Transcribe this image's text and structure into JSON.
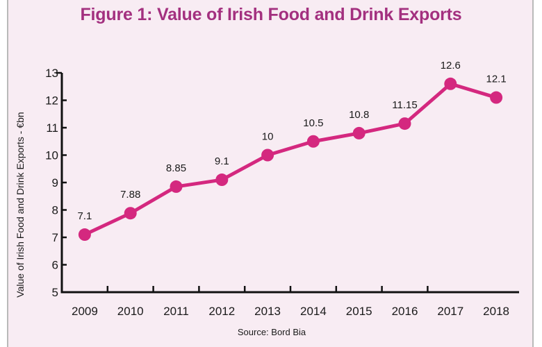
{
  "chart_data": {
    "type": "line",
    "title": "Figure 1: Value of Irish Food and Drink Exports",
    "xlabel": "",
    "ylabel": "Value of Irish Food and Drink Exports - €bn",
    "categories": [
      "2009",
      "2010",
      "2011",
      "2012",
      "2013",
      "2014",
      "2015",
      "2016",
      "2017",
      "2018"
    ],
    "series": [
      {
        "name": "Value of Irish Food and Drink Exports",
        "values": [
          7.1,
          7.88,
          8.85,
          9.1,
          10,
          10.5,
          10.8,
          11.15,
          12.6,
          12.1
        ],
        "labels": [
          "7.1",
          "7.88",
          "8.85",
          "9.1",
          "10",
          "10.5",
          "10.8",
          "11.15",
          "12.6",
          "12.1"
        ],
        "color": "#d4287f"
      }
    ],
    "ylim": [
      5,
      13
    ],
    "yticks": [
      "5",
      "6",
      "7",
      "8",
      "9",
      "10",
      "11",
      "12",
      "13"
    ],
    "grid": false,
    "legend": "none",
    "source": "Source: Bord Bia"
  },
  "colors": {
    "title": "#a3307f",
    "background": "#f8ecf3",
    "line": "#d4287f"
  }
}
